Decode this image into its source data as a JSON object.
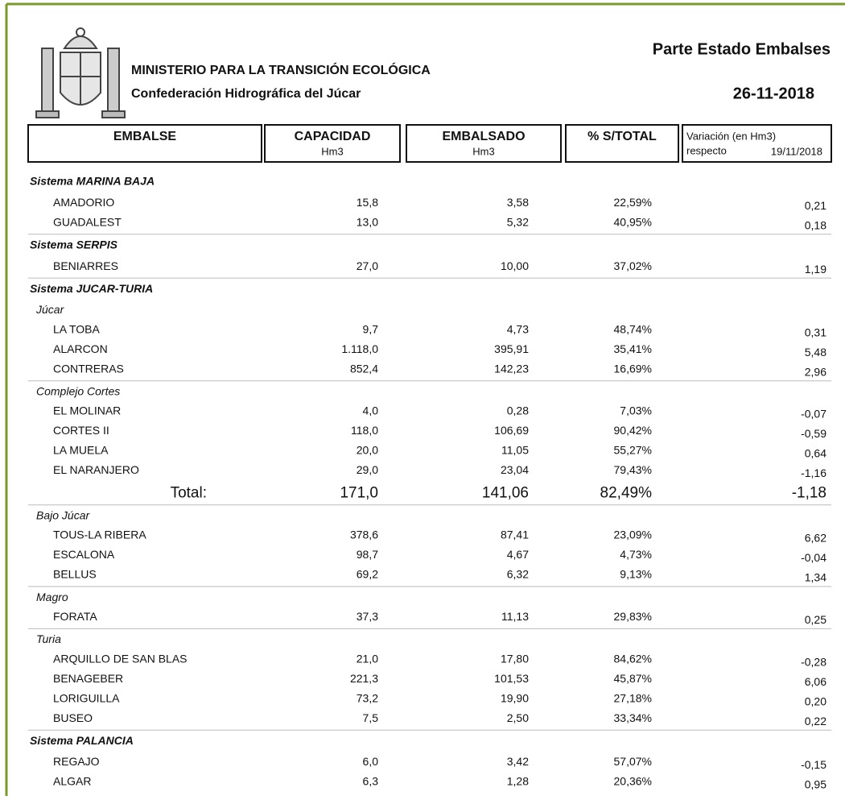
{
  "header": {
    "ministry": "MINISTERIO PARA LA TRANSICIÓN ECOLÓGICA",
    "confederation": "Confederación Hidrográfica del Júcar",
    "title": "Parte Estado Embalses",
    "date": "26-11-2018"
  },
  "table": {
    "columns": [
      {
        "title": "EMBALSE"
      },
      {
        "title": "CAPACIDAD",
        "unit": "Hm3"
      },
      {
        "title": "EMBALSADO",
        "unit": "Hm3"
      },
      {
        "title": "% S/TOTAL"
      },
      {
        "title": "Variación (en Hm3)",
        "line2": "respecto",
        "ref_date": "19/11/2018"
      }
    ],
    "sections": [
      {
        "name": "Sistema MARINA BAJA",
        "groups": [
          {
            "rows": [
              [
                "AMADORIO",
                "15,8",
                "3,58",
                "22,59%",
                "0,21"
              ],
              [
                "GUADALEST",
                "13,0",
                "5,32",
                "40,95%",
                "0,18"
              ]
            ]
          }
        ]
      },
      {
        "name": "Sistema SERPIS",
        "groups": [
          {
            "rows": [
              [
                "BENIARRES",
                "27,0",
                "10,00",
                "37,02%",
                "1,19"
              ]
            ]
          }
        ]
      },
      {
        "name": "Sistema JUCAR-TURIA",
        "groups": [
          {
            "name": "Júcar",
            "rows": [
              [
                "LA TOBA",
                "9,7",
                "4,73",
                "48,74%",
                "0,31"
              ],
              [
                "ALARCON",
                "1.118,0",
                "395,91",
                "35,41%",
                "5,48"
              ],
              [
                "CONTRERAS",
                "852,4",
                "142,23",
                "16,69%",
                "2,96"
              ]
            ]
          },
          {
            "name": "Complejo Cortes",
            "rows": [
              [
                "EL MOLINAR",
                "4,0",
                "0,28",
                "7,03%",
                "-0,07"
              ],
              [
                "CORTES II",
                "118,0",
                "106,69",
                "90,42%",
                "-0,59"
              ],
              [
                "LA MUELA",
                "20,0",
                "11,05",
                "55,27%",
                "0,64"
              ],
              [
                "EL NARANJERO",
                "29,0",
                "23,04",
                "79,43%",
                "-1,16"
              ]
            ],
            "total": [
              "Total:",
              "171,0",
              "141,06",
              "82,49%",
              "-1,18"
            ]
          },
          {
            "name": "Bajo Júcar",
            "rows": [
              [
                "TOUS-LA RIBERA",
                "378,6",
                "87,41",
                "23,09%",
                "6,62"
              ],
              [
                "ESCALONA",
                "98,7",
                "4,67",
                "4,73%",
                "-0,04"
              ],
              [
                "BELLUS",
                "69,2",
                "6,32",
                "9,13%",
                "1,34"
              ]
            ]
          },
          {
            "name": "Magro",
            "rows": [
              [
                "FORATA",
                "37,3",
                "11,13",
                "29,83%",
                "0,25"
              ]
            ]
          },
          {
            "name": "Turia",
            "rows": [
              [
                "ARQUILLO DE SAN BLAS",
                "21,0",
                "17,80",
                "84,62%",
                "-0,28"
              ],
              [
                "BENAGEBER",
                "221,3",
                "101,53",
                "45,87%",
                "6,06"
              ],
              [
                "LORIGUILLA",
                "73,2",
                "19,90",
                "27,18%",
                "0,20"
              ],
              [
                "BUSEO",
                "7,5",
                "2,50",
                "33,34%",
                "0,22"
              ]
            ]
          }
        ]
      },
      {
        "name": "Sistema PALANCIA",
        "groups": [
          {
            "rows": [
              [
                "REGAJO",
                "6,0",
                "3,42",
                "57,07%",
                "-0,15"
              ],
              [
                "ALGAR",
                "6,3",
                "1,28",
                "20,36%",
                "0,95"
              ]
            ]
          }
        ]
      }
    ]
  }
}
